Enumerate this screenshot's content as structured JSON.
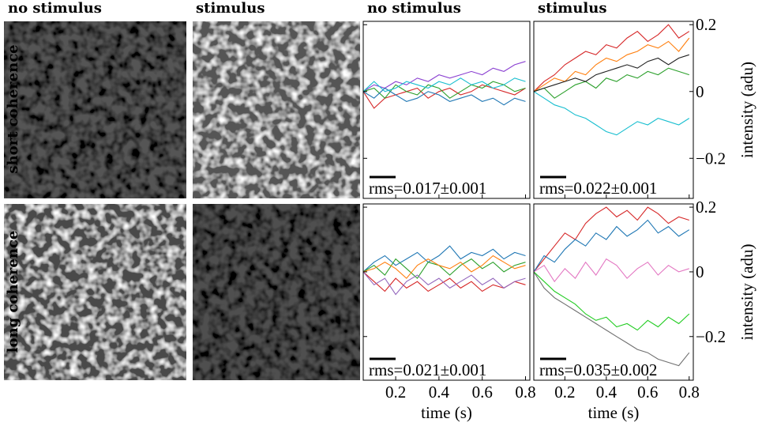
{
  "image_titles": [
    "no stimulus",
    "stimulus"
  ],
  "row_labels": [
    "short coherence",
    "long coherence"
  ],
  "chart_data": [
    {
      "type": "line",
      "title": "no stimulus",
      "annotation": "rms=0.017±0.001",
      "x": [
        0.05,
        0.1,
        0.15,
        0.2,
        0.25,
        0.3,
        0.35,
        0.4,
        0.45,
        0.5,
        0.55,
        0.6,
        0.65,
        0.7,
        0.75,
        0.8
      ],
      "xlim": [
        0.05,
        0.82
      ],
      "xticks": [
        0.2,
        0.4,
        0.6,
        0.8
      ],
      "ylim": [
        -0.32,
        0.21
      ],
      "yticks": [
        0.2,
        0,
        {
          "value": -0.2,
          "label": "−0.2"
        }
      ],
      "series": [
        {
          "color": "#8a3fd1",
          "values": [
            0,
            0.02,
            0.01,
            0.03,
            0.02,
            0.04,
            0.03,
            0.05,
            0.04,
            0.05,
            0.06,
            0.05,
            0.07,
            0.06,
            0.08,
            0.09
          ]
        },
        {
          "color": "#d62728",
          "values": [
            0,
            -0.05,
            -0.02,
            -0.01,
            0,
            0.01,
            -0.02,
            0,
            0.01,
            -0.01,
            0,
            0.02,
            0.01,
            0,
            -0.01,
            0.01
          ]
        },
        {
          "color": "#2ca02c",
          "values": [
            0,
            0.01,
            -0.02,
            0.02,
            0,
            -0.01,
            0.02,
            0.01,
            -0.02,
            0,
            0.02,
            0.01,
            0.03,
            0.02,
            0,
            0.01
          ]
        },
        {
          "color": "#1f77b4",
          "values": [
            0,
            -0.02,
            0.01,
            -0.01,
            -0.03,
            -0.02,
            0,
            -0.01,
            -0.03,
            -0.02,
            -0.01,
            -0.03,
            -0.02,
            -0.04,
            -0.02,
            -0.03
          ]
        },
        {
          "color": "#17becf",
          "values": [
            0,
            0.03,
            0,
            0.01,
            0.03,
            0.02,
            0.01,
            0.03,
            0.02,
            0.04,
            0.02,
            0.03,
            0.01,
            0.02,
            0.04,
            0.03
          ]
        }
      ]
    },
    {
      "type": "line",
      "title": "stimulus",
      "annotation": "rms=0.022±0.001",
      "y_label": "intensity (adu)",
      "x": [
        0.05,
        0.1,
        0.15,
        0.2,
        0.25,
        0.3,
        0.35,
        0.4,
        0.45,
        0.5,
        0.55,
        0.6,
        0.65,
        0.7,
        0.75,
        0.8
      ],
      "xlim": [
        0.05,
        0.82
      ],
      "xticks": [
        0.2,
        0.4,
        0.6,
        0.8
      ],
      "ylim": [
        -0.32,
        0.21
      ],
      "yticks": [
        0.2,
        0,
        {
          "value": -0.2,
          "label": "−0.2"
        }
      ],
      "series": [
        {
          "color": "#d62728",
          "values": [
            0,
            0.03,
            0.05,
            0.08,
            0.1,
            0.12,
            0.11,
            0.14,
            0.13,
            0.16,
            0.18,
            0.15,
            0.17,
            0.2,
            0.16,
            0.18
          ]
        },
        {
          "color": "#ff7f0e",
          "values": [
            0,
            0.02,
            0.04,
            0.03,
            0.06,
            0.05,
            0.08,
            0.1,
            0.09,
            0.11,
            0.12,
            0.14,
            0.13,
            0.15,
            0.12,
            0.16
          ]
        },
        {
          "color": "#17becf",
          "values": [
            0,
            -0.02,
            -0.04,
            -0.05,
            -0.07,
            -0.08,
            -0.1,
            -0.12,
            -0.13,
            -0.11,
            -0.09,
            -0.1,
            -0.08,
            -0.09,
            -0.1,
            -0.08
          ]
        },
        {
          "color": "#2ca02c",
          "values": [
            0,
            0.01,
            -0.02,
            0,
            0.02,
            0.03,
            0.01,
            0.04,
            0.03,
            0.05,
            0.04,
            0.06,
            0.05,
            0.07,
            0.06,
            0.05
          ]
        },
        {
          "color": "#1f1f1f",
          "values": [
            0,
            0.01,
            0.02,
            0.03,
            0.04,
            0.03,
            0.05,
            0.06,
            0.07,
            0.08,
            0.07,
            0.09,
            0.1,
            0.08,
            0.1,
            0.11
          ]
        }
      ]
    },
    {
      "type": "line",
      "annotation": "rms=0.021±0.001",
      "x_label": "time (s)",
      "x": [
        0.05,
        0.1,
        0.15,
        0.2,
        0.25,
        0.3,
        0.35,
        0.4,
        0.45,
        0.5,
        0.55,
        0.6,
        0.65,
        0.7,
        0.75,
        0.8
      ],
      "xlim": [
        0.05,
        0.82
      ],
      "xticks": [
        0.2,
        0.4,
        0.6,
        0.8
      ],
      "ylim": [
        -0.335,
        0.21
      ],
      "yticks": [
        0.2,
        0,
        {
          "value": -0.2,
          "label": "−0.2"
        }
      ],
      "series": [
        {
          "color": "#1f77b4",
          "values": [
            0,
            0.03,
            0.05,
            0.02,
            0.04,
            0.06,
            0.03,
            0.05,
            0.08,
            0.04,
            0.06,
            0.05,
            0.07,
            0.04,
            0.06,
            0.05
          ]
        },
        {
          "color": "#d62728",
          "values": [
            0,
            -0.03,
            -0.06,
            -0.02,
            -0.05,
            -0.03,
            -0.06,
            -0.04,
            -0.02,
            -0.05,
            -0.03,
            -0.06,
            -0.04,
            -0.05,
            -0.03,
            -0.04
          ]
        },
        {
          "color": "#2ca02c",
          "values": [
            0,
            0.02,
            -0.01,
            0.04,
            0.01,
            -0.02,
            0.03,
            0.02,
            -0.01,
            0.02,
            0.04,
            0.01,
            0.03,
            0,
            0.02,
            0.03
          ]
        },
        {
          "color": "#9467bd",
          "values": [
            0,
            -0.04,
            -0.02,
            -0.07,
            -0.03,
            -0.01,
            -0.04,
            -0.02,
            -0.05,
            -0.03,
            -0.01,
            -0.04,
            -0.02,
            -0.05,
            -0.03,
            -0.02
          ]
        },
        {
          "color": "#ff7f0e",
          "values": [
            0,
            0.01,
            0.03,
            0.01,
            -0.02,
            0.02,
            0.04,
            0.02,
            0.01,
            0.03,
            0,
            0.02,
            0.05,
            0.03,
            0.01,
            0.02
          ]
        }
      ]
    },
    {
      "type": "line",
      "annotation": "rms=0.035±0.002",
      "x_label": "time (s)",
      "y_label": "intensity (adu)",
      "x": [
        0.05,
        0.1,
        0.15,
        0.2,
        0.25,
        0.3,
        0.35,
        0.4,
        0.45,
        0.5,
        0.55,
        0.6,
        0.65,
        0.7,
        0.75,
        0.8
      ],
      "xlim": [
        0.05,
        0.82
      ],
      "xticks": [
        0.2,
        0.4,
        0.6,
        0.8
      ],
      "ylim": [
        -0.335,
        0.21
      ],
      "yticks": [
        0.2,
        0,
        {
          "value": -0.2,
          "label": "−0.2"
        }
      ],
      "series": [
        {
          "color": "#d62728",
          "values": [
            0,
            0.04,
            0.08,
            0.12,
            0.1,
            0.15,
            0.18,
            0.2,
            0.17,
            0.19,
            0.16,
            0.2,
            0.18,
            0.15,
            0.17,
            0.16
          ]
        },
        {
          "color": "#6f6f6f",
          "values": [
            0,
            -0.05,
            -0.08,
            -0.1,
            -0.12,
            -0.14,
            -0.16,
            -0.18,
            -0.2,
            -0.22,
            -0.24,
            -0.25,
            -0.27,
            -0.28,
            -0.29,
            -0.25
          ]
        },
        {
          "color": "#22cc22",
          "values": [
            0,
            -0.03,
            -0.06,
            -0.08,
            -0.1,
            -0.13,
            -0.15,
            -0.14,
            -0.17,
            -0.16,
            -0.18,
            -0.15,
            -0.17,
            -0.14,
            -0.16,
            -0.13
          ]
        },
        {
          "color": "#1f77b4",
          "values": [
            0,
            0.05,
            0.03,
            0.07,
            0.1,
            0.08,
            0.12,
            0.1,
            0.14,
            0.11,
            0.13,
            0.16,
            0.12,
            0.14,
            0.11,
            0.13
          ]
        },
        {
          "color": "#e377c2",
          "values": [
            0,
            0.02,
            -0.03,
            0.01,
            -0.02,
            0.03,
            -0.01,
            0.04,
            0.02,
            -0.02,
            0.01,
            0.03,
            -0.01,
            0.02,
            0,
            0.01
          ]
        }
      ]
    }
  ]
}
